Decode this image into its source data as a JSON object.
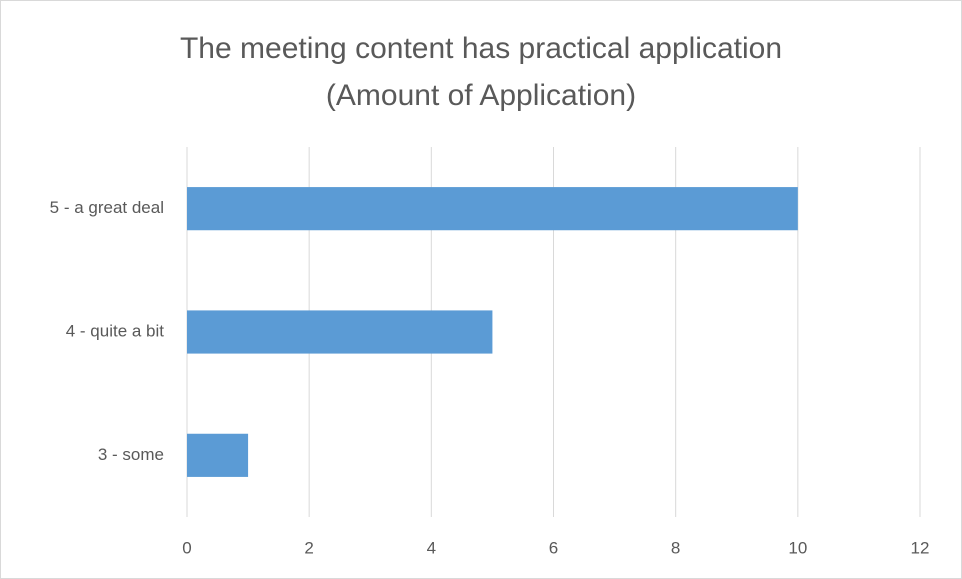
{
  "chart_data": {
    "type": "hbar",
    "title": "The meeting content has practical application",
    "subtitle": "(Amount of Application)",
    "categories": [
      "5 - a great deal",
      "4 - quite a bit",
      "3 - some"
    ],
    "values": [
      10,
      5,
      1
    ],
    "color": "#5b9bd5",
    "xlim": [
      0,
      12
    ],
    "xticks": [
      0,
      2,
      4,
      6,
      8,
      10,
      12
    ],
    "grid": true
  }
}
